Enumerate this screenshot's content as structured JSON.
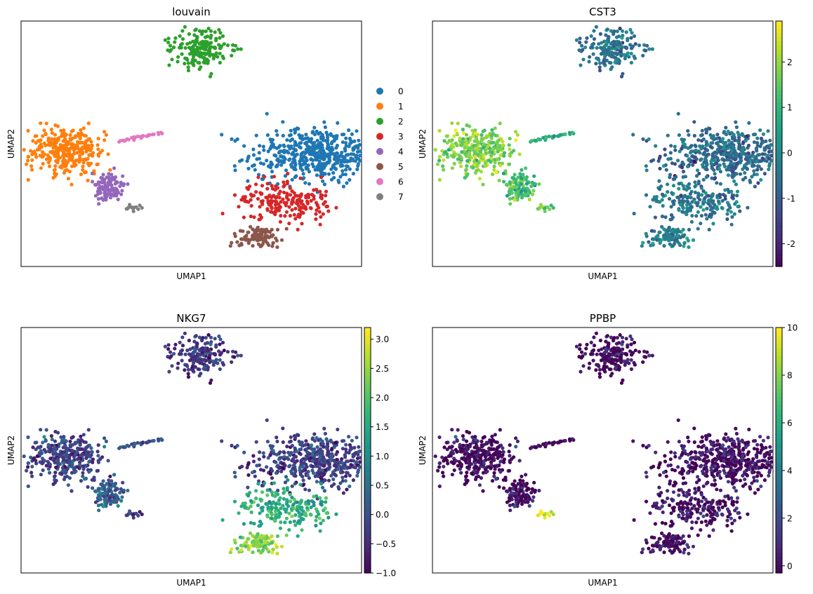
{
  "figure": {
    "type": "scanpy UMAP embedding panels"
  },
  "chart_data": [
    {
      "type": "scatter",
      "title": "louvain",
      "xlabel": "UMAP1",
      "ylabel": "UMAP2",
      "color_mode": "categorical",
      "legend": {
        "placement": "right",
        "categories": [
          "0",
          "1",
          "2",
          "3",
          "4",
          "5",
          "6",
          "7"
        ],
        "colors": [
          "#1f77b4",
          "#ff7f0e",
          "#2ca02c",
          "#d62728",
          "#9467bd",
          "#8c564b",
          "#e377c2",
          "#7f7f7f"
        ]
      },
      "clusters": [
        {
          "category": "0",
          "center": [
            8.2,
            4.2
          ],
          "spread": [
            2.1,
            1.0
          ],
          "count": 520
        },
        {
          "category": "1",
          "center": [
            -7.6,
            4.5
          ],
          "spread": [
            1.2,
            0.9
          ],
          "count": 320
        },
        {
          "category": "2",
          "center": [
            0.8,
            12.0
          ],
          "spread": [
            0.9,
            0.7
          ],
          "count": 190
        },
        {
          "category": "3",
          "center": [
            6.2,
            0.8
          ],
          "spread": [
            1.5,
            0.7
          ],
          "count": 200
        },
        {
          "category": "4",
          "center": [
            -5.0,
            1.9
          ],
          "spread": [
            0.5,
            0.5
          ],
          "count": 120
        },
        {
          "category": "5",
          "center": [
            4.6,
            -1.8
          ],
          "spread": [
            0.7,
            0.4
          ],
          "count": 100
        },
        {
          "category": "6",
          "center": [
            -3.4,
            5.4
          ],
          "spread": [
            0.9,
            0.2
          ],
          "count": 30
        },
        {
          "category": "7",
          "center": [
            -3.4,
            0.3
          ],
          "spread": [
            0.25,
            0.15
          ],
          "count": 12
        }
      ],
      "xlim": [
        -10.5,
        11
      ],
      "ylim": [
        -4,
        14
      ]
    },
    {
      "type": "scatter",
      "title": "CST3",
      "xlabel": "UMAP1",
      "ylabel": "UMAP2",
      "color_mode": "continuous",
      "colormap": "viridis",
      "colorbar": {
        "range": [
          -2.5,
          2.9
        ],
        "ticks": [
          "-2",
          "-1",
          "0",
          "1",
          "2"
        ],
        "tick_values": [
          -2,
          -1,
          0,
          1,
          2
        ]
      },
      "cluster_values": {
        "0": -0.6,
        "1": 1.9,
        "2": -0.4,
        "3": -0.4,
        "4": 1.3,
        "5": -0.2,
        "6": 1.0,
        "7": 1.6
      },
      "xlim": [
        -10.5,
        11
      ],
      "ylim": [
        -4,
        14
      ]
    },
    {
      "type": "scatter",
      "title": "NKG7",
      "xlabel": "UMAP1",
      "ylabel": "UMAP2",
      "color_mode": "continuous",
      "colormap": "viridis",
      "colorbar": {
        "range": [
          -1.0,
          3.2
        ],
        "ticks": [
          "−1.0",
          "−0.5",
          "0.0",
          "0.5",
          "1.0",
          "1.5",
          "2.0",
          "2.5",
          "3.0"
        ],
        "tick_values": [
          -1.0,
          -0.5,
          0.0,
          0.5,
          1.0,
          1.5,
          2.0,
          2.5,
          3.0
        ]
      },
      "cluster_values": {
        "0": -0.2,
        "1": -0.1,
        "2": -0.3,
        "3": 1.6,
        "4": 0.3,
        "5": 2.4,
        "6": 0.2,
        "7": -0.3
      },
      "xlim": [
        -10.5,
        11
      ],
      "ylim": [
        -4,
        14
      ]
    },
    {
      "type": "scatter",
      "title": "PPBP",
      "xlabel": "UMAP1",
      "ylabel": "UMAP2",
      "color_mode": "continuous",
      "colormap": "viridis",
      "colorbar": {
        "range": [
          -0.3,
          10
        ],
        "ticks": [
          "0",
          "2",
          "4",
          "6",
          "8",
          "10"
        ],
        "tick_values": [
          0,
          2,
          4,
          6,
          8,
          10
        ]
      },
      "cluster_values": {
        "0": 0.1,
        "1": 0.1,
        "2": 0.0,
        "3": 0.2,
        "4": 0.1,
        "5": 0.0,
        "6": 0.2,
        "7": 9.5
      },
      "xlim": [
        -10.5,
        11
      ],
      "ylim": [
        -4,
        14
      ]
    }
  ]
}
